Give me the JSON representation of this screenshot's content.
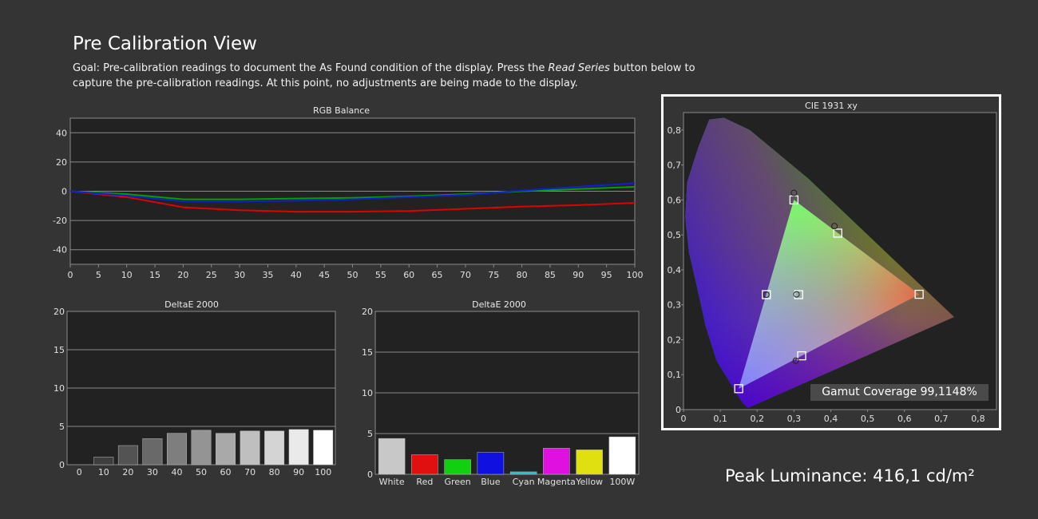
{
  "page": {
    "title": "Pre Calibration View",
    "goal_prefix": "Goal: Pre-calibration readings to document the As Found condition of the display. Press the ",
    "goal_emph": "Read Series",
    "goal_suffix": " button below to capture the pre-calibration readings. At this point, no adjustments are being made to the display.",
    "peak_luminance": "Peak Luminance: 416,1 cd/m²",
    "gamut_coverage": "Gamut Coverage 99,1148%"
  },
  "colors": {
    "background": "#343434",
    "plot_bg": "#222222",
    "red": "#e00000",
    "green": "#00a000",
    "blue": "#1020d0",
    "grid": "#8a8a8a"
  },
  "chart_data": [
    {
      "id": "rgb-balance",
      "type": "line",
      "title": "RGB Balance",
      "x": [
        0,
        10,
        20,
        30,
        40,
        50,
        60,
        70,
        80,
        90,
        100
      ],
      "xticks": [
        0,
        5,
        10,
        15,
        20,
        25,
        30,
        35,
        40,
        45,
        50,
        55,
        60,
        65,
        70,
        75,
        80,
        85,
        90,
        95,
        100
      ],
      "yticks": [
        40,
        20,
        0,
        -20,
        -40
      ],
      "ylim": [
        -50,
        50
      ],
      "xlim": [
        0,
        100
      ],
      "grid": true,
      "series": [
        {
          "color": "#e00000",
          "values": [
            0,
            -4,
            -11,
            -13,
            -14,
            -14,
            -13.5,
            -12,
            -10.5,
            -9.5,
            -8
          ]
        },
        {
          "color": "#00a000",
          "values": [
            0,
            -2,
            -5.5,
            -5.5,
            -5,
            -4.5,
            -3.5,
            -2,
            0,
            1.5,
            3
          ]
        },
        {
          "color": "#1020d0",
          "values": [
            0,
            -3,
            -7,
            -7,
            -6.5,
            -5.5,
            -4,
            -2.5,
            0.5,
            3,
            5.5
          ]
        }
      ]
    },
    {
      "id": "deltae-grayscale",
      "type": "bar",
      "title": "DeltaE 2000",
      "categories": [
        "0",
        "10",
        "20",
        "30",
        "40",
        "50",
        "60",
        "70",
        "80",
        "90",
        "100"
      ],
      "values": [
        0,
        1,
        2.5,
        3.4,
        4.1,
        4.5,
        4.1,
        4.4,
        4.4,
        4.6,
        4.5
      ],
      "yticks": [
        20,
        15,
        10,
        5,
        0
      ],
      "ylim": [
        0,
        20
      ],
      "grid": true
    },
    {
      "id": "deltae-colors",
      "type": "bar",
      "title": "DeltaE 2000",
      "categories": [
        "White",
        "Red",
        "Green",
        "Blue",
        "Cyan",
        "Magenta",
        "Yellow",
        "100W"
      ],
      "values": [
        4.4,
        2.4,
        1.8,
        2.7,
        0.3,
        3.2,
        3.0,
        4.6
      ],
      "bar_colors": [
        "#c8c8c8",
        "#e01010",
        "#10d010",
        "#1010e0",
        "#10c8c8",
        "#e010e0",
        "#e0e010",
        "#ffffff"
      ],
      "yticks": [
        20,
        15,
        10,
        5,
        0
      ],
      "ylim": [
        0,
        20
      ],
      "grid": true
    },
    {
      "id": "cie-1931",
      "type": "scatter",
      "title": "CIE 1931 xy",
      "xticks": [
        "0",
        "0,1",
        "0,2",
        "0,3",
        "0,4",
        "0,5",
        "0,6",
        "0,7",
        "0,8"
      ],
      "yticks": [
        "0,8",
        "0,7",
        "0,6",
        "0,5",
        "0,4",
        "0,3",
        "0,2",
        "0,1",
        "0"
      ],
      "xlim": [
        0,
        0.85
      ],
      "ylim": [
        0,
        0.85
      ],
      "gamut_triangle": [
        [
          0.64,
          0.33
        ],
        [
          0.3,
          0.6
        ],
        [
          0.15,
          0.06
        ]
      ],
      "targets": [
        {
          "x": 0.64,
          "y": 0.33
        },
        {
          "x": 0.3,
          "y": 0.6
        },
        {
          "x": 0.15,
          "y": 0.06
        },
        {
          "x": 0.225,
          "y": 0.329
        },
        {
          "x": 0.321,
          "y": 0.154
        },
        {
          "x": 0.419,
          "y": 0.505
        },
        {
          "x": 0.3127,
          "y": 0.329
        }
      ],
      "measured": [
        {
          "x": 0.3,
          "y": 0.62
        },
        {
          "x": 0.41,
          "y": 0.525
        },
        {
          "x": 0.225,
          "y": 0.329
        },
        {
          "x": 0.305,
          "y": 0.14
        },
        {
          "x": 0.307,
          "y": 0.33
        }
      ]
    }
  ]
}
